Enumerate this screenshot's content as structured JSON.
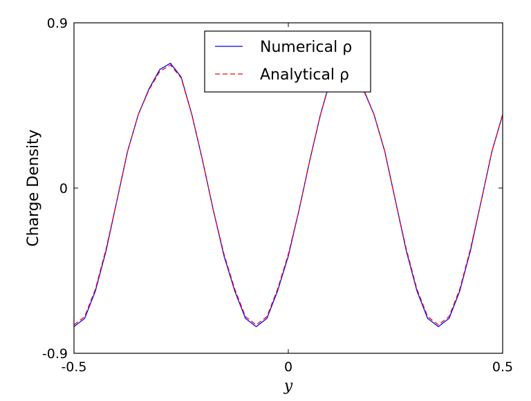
{
  "chart_data": {
    "type": "line",
    "xlabel": "y",
    "ylabel": "Charge Density",
    "xlim": [
      -0.5,
      0.5
    ],
    "ylim": [
      -0.9,
      0.9
    ],
    "xticks": [
      -0.5,
      0,
      0.5
    ],
    "xtick_labels": [
      "-0.5",
      "0",
      "0.5"
    ],
    "yticks": [
      -0.9,
      0,
      0.9
    ],
    "ytick_labels": [
      "-0.9",
      "0",
      "0.9"
    ],
    "legend_position": "top-center",
    "grid": false,
    "series": [
      {
        "name": "Numerical ρ",
        "color": "#0000ff",
        "style": "solid",
        "x": [
          -0.5,
          -0.475,
          -0.45,
          -0.425,
          -0.4,
          -0.375,
          -0.35,
          -0.325,
          -0.3,
          -0.275,
          -0.25,
          -0.225,
          -0.2,
          -0.175,
          -0.15,
          -0.125,
          -0.1,
          -0.075,
          -0.05,
          -0.025,
          0,
          0.025,
          0.05,
          0.075,
          0.1,
          0.125,
          0.15,
          0.175,
          0.2,
          0.225,
          0.25,
          0.275,
          0.3,
          0.325,
          0.35,
          0.375,
          0.4,
          0.425,
          0.45,
          0.475,
          0.5
        ],
        "values": [
          -0.755,
          -0.71,
          -0.56,
          -0.34,
          -0.07,
          0.2,
          0.4,
          0.54,
          0.645,
          0.68,
          0.605,
          0.4,
          0.15,
          -0.12,
          -0.37,
          -0.56,
          -0.71,
          -0.755,
          -0.71,
          -0.56,
          -0.37,
          -0.12,
          0.15,
          0.4,
          0.605,
          0.68,
          0.645,
          0.54,
          0.4,
          0.2,
          -0.07,
          -0.34,
          -0.56,
          -0.71,
          -0.755,
          -0.71,
          -0.56,
          -0.34,
          -0.07,
          0.2,
          0.4
        ]
      },
      {
        "name": "Analytical ρ",
        "color": "#ff0000",
        "style": "dashed",
        "x": [
          -0.5,
          -0.475,
          -0.45,
          -0.425,
          -0.4,
          -0.375,
          -0.35,
          -0.325,
          -0.3,
          -0.275,
          -0.25,
          -0.225,
          -0.2,
          -0.175,
          -0.15,
          -0.125,
          -0.1,
          -0.075,
          -0.05,
          -0.025,
          0,
          0.025,
          0.05,
          0.075,
          0.1,
          0.125,
          0.15,
          0.175,
          0.2,
          0.225,
          0.25,
          0.275,
          0.3,
          0.325,
          0.35,
          0.375,
          0.4,
          0.425,
          0.45,
          0.475,
          0.5
        ],
        "values": [
          -0.745,
          -0.7,
          -0.55,
          -0.33,
          -0.07,
          0.2,
          0.4,
          0.535,
          0.635,
          0.67,
          0.6,
          0.4,
          0.15,
          -0.12,
          -0.36,
          -0.55,
          -0.7,
          -0.745,
          -0.7,
          -0.55,
          -0.36,
          -0.12,
          0.15,
          0.4,
          0.6,
          0.67,
          0.635,
          0.535,
          0.4,
          0.2,
          -0.07,
          -0.33,
          -0.55,
          -0.7,
          -0.745,
          -0.7,
          -0.55,
          -0.33,
          -0.07,
          0.2,
          0.4
        ]
      }
    ]
  }
}
